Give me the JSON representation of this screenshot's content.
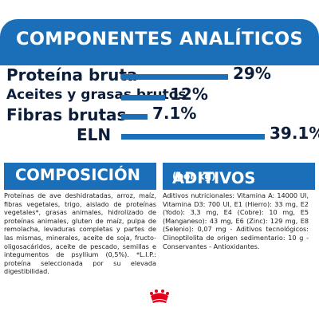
{
  "header": {
    "title": "COMPONENTES ANALÍTICOS"
  },
  "components": [
    {
      "label": "Proteína bruta",
      "value": "29%",
      "fraction": 0.29
    },
    {
      "label": "Aceites y grasas brutos",
      "value": "12%",
      "fraction": 0.12
    },
    {
      "label": "Fibras brutas",
      "value": "7.1%",
      "fraction": 0.071
    },
    {
      "label": "ELN",
      "value": "39.1%",
      "fraction": 0.391
    }
  ],
  "composicion": {
    "title": "COMPOSICIÓN",
    "text": "Proteínas de ave deshidratadas, arroz, maíz, fibras vegetales, trigo, aislado de proteínas vegetales*, grasas animales, hidrolizado de proteínas animales, gluten de maíz, pulpa de remolacha, levaduras completas y partes de las mismas, minerales, aceite de soja, fructo-oligosacáridos, aceite de pescado, semillas e integumentos de psyllium (0,5%). *L.I.P.: proteína seleccionada por su elevada digestibilidad."
  },
  "aditivos": {
    "title": "ADITIVOS",
    "title_suffix": "(por kg)",
    "text": "Aditivos nutricionales: Vitamina A: 14000 UI, Vitamina D3: 700 UI, E1 (Hierro): 33 mg, E2 (Yodo): 3,3 mg, E4 (Cobre): 10 mg, E5 (Manganeso): 43 mg, E6 (Zinc): 129 mg, E8 (Selenio): 0,07 mg - Aditivos tecnológicos: Clinoptilolita de origen sedimentario: 10 g - Conservantes - Antioxidantes."
  },
  "colors": {
    "brand_blue": "#1b6fb8",
    "text_dark": "#0d1e3a",
    "logo_red": "#e2001a"
  },
  "logo": {
    "icon": "royal-canin-crown-icon"
  }
}
